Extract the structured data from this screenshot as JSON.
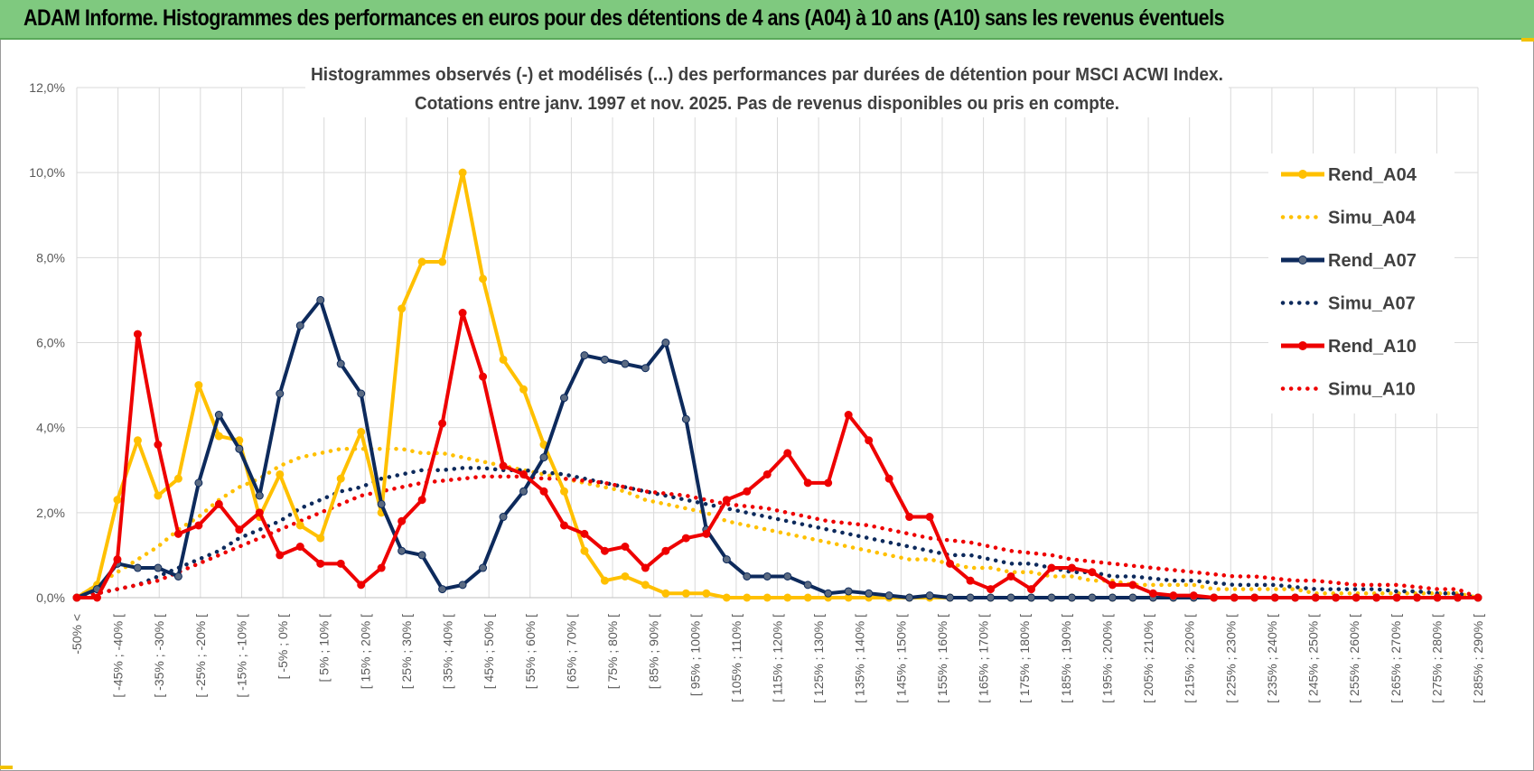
{
  "banner": {
    "title": "ADAM Informe. Histogrammes des performances en euros pour des détentions de 4 ans (A04) à 10 ans (A10) sans les revenus éventuels"
  },
  "colors": {
    "banner_bg": "#7fc97f",
    "A04": "#ffc000",
    "A07": "#0d2a5c",
    "A10": "#ee0000",
    "marker_A07": "#5a6a82",
    "grid": "#d9d9d9"
  },
  "chart_data": {
    "type": "line",
    "title_line1": "Histogrammes observés (-) et modélisés (...) des performances par durées de détention pour MSCI ACWI Index.",
    "title_line2": "Cotations entre janv. 1997 et nov. 2025. Pas de revenus disponibles ou pris en compte.",
    "ylim": [
      0,
      12
    ],
    "y_ticks": [
      "0,0%",
      "2,0%",
      "4,0%",
      "6,0%",
      "8,0%",
      "10,0%",
      "12,0%"
    ],
    "y_tick_values": [
      0,
      2,
      4,
      6,
      8,
      10,
      12
    ],
    "grid": true,
    "legend_position": "right",
    "x_tick_labels": [
      "-50% <",
      "[ -45% ; -40% [",
      "[ -35% ; -30% [",
      "[ -25% ; -20% [",
      "[ -15% ; -10% [",
      "[ -5% ; 0% [",
      "[ 5% ; 10% [",
      "[ 15% ; 20% [",
      "[ 25% ; 30% [",
      "[ 35% ; 40% [",
      "[ 45% ; 50% [",
      "[ 55% ; 60% [",
      "[ 65% ; 70% [",
      "[ 75% ; 80% [",
      "[ 85% ; 90% [",
      "[ 95% ; 100% [",
      "[ 105% ; 110% [",
      "[ 115% ; 120% [",
      "[ 125% ; 130% [",
      "[ 135% ; 140% [",
      "[ 145% ; 150% [",
      "[ 155% ; 160% [",
      "[ 165% ; 170% [",
      "[ 175% ; 180% [",
      "[ 185% ; 190% [",
      "[ 195% ; 200% [",
      "[ 205% ; 210% [",
      "[ 215% ; 220% [",
      "[ 225% ; 230% [",
      "[ 235% ; 240% [",
      "[ 245% ; 250% [",
      "[ 255% ; 260% [",
      "[ 265% ; 270% [",
      "[ 275% ; 280% [",
      "[ 285% ; 290% ["
    ],
    "series": [
      {
        "name": "Rend_A04",
        "style": "solid",
        "color": "#ffc000",
        "values": [
          0.0,
          0.3,
          2.3,
          3.7,
          2.4,
          2.8,
          5.0,
          3.8,
          3.7,
          1.9,
          2.9,
          1.7,
          1.4,
          2.8,
          3.9,
          2.0,
          6.8,
          7.9,
          7.9,
          10.0,
          7.5,
          5.6,
          4.9,
          3.6,
          2.5,
          1.1,
          0.4,
          0.5,
          0.3,
          0.1,
          0.1,
          0.1,
          0.0,
          0.0,
          0.0,
          0.0,
          0.0,
          0.0,
          0.0,
          0.0,
          0.0,
          0.0,
          0.0,
          0.0,
          0.0,
          0.0,
          0.0,
          0.0,
          0.0,
          0.0,
          0.0,
          0.0,
          0.0,
          0.0,
          0.0,
          0.0,
          0.0,
          0.0,
          0.0,
          0.0,
          0.0,
          0.0,
          0.0,
          0.0,
          0.0,
          0.0,
          0.0,
          0.0,
          0.0,
          0.0
        ]
      },
      {
        "name": "Simu_A04",
        "style": "dotted",
        "color": "#ffc000",
        "values": [
          0.0,
          0.3,
          0.6,
          0.9,
          1.2,
          1.6,
          1.9,
          2.3,
          2.6,
          2.8,
          3.1,
          3.3,
          3.4,
          3.5,
          3.5,
          3.5,
          3.5,
          3.4,
          3.4,
          3.3,
          3.2,
          3.1,
          3.0,
          2.9,
          2.8,
          2.7,
          2.6,
          2.5,
          2.3,
          2.2,
          2.1,
          2.0,
          1.8,
          1.7,
          1.6,
          1.5,
          1.4,
          1.3,
          1.2,
          1.1,
          1.0,
          0.9,
          0.9,
          0.8,
          0.7,
          0.7,
          0.6,
          0.6,
          0.5,
          0.5,
          0.4,
          0.4,
          0.3,
          0.3,
          0.3,
          0.3,
          0.2,
          0.2,
          0.2,
          0.2,
          0.2,
          0.1,
          0.1,
          0.1,
          0.1,
          0.1,
          0.1,
          0.1,
          0.1,
          0.0
        ]
      },
      {
        "name": "Rend_A07",
        "style": "solid",
        "color": "#0d2a5c",
        "values": [
          0.0,
          0.2,
          0.8,
          0.7,
          0.7,
          0.5,
          2.7,
          4.3,
          3.5,
          2.4,
          4.8,
          6.4,
          7.0,
          5.5,
          4.8,
          2.2,
          1.1,
          1.0,
          0.2,
          0.3,
          0.7,
          1.9,
          2.5,
          3.3,
          4.7,
          5.7,
          5.6,
          5.5,
          5.4,
          6.0,
          4.2,
          1.6,
          0.9,
          0.5,
          0.5,
          0.5,
          0.3,
          0.1,
          0.15,
          0.1,
          0.05,
          0.0,
          0.05,
          0.0,
          0.0,
          0.0,
          0.0,
          0.0,
          0.0,
          0.0,
          0.0,
          0.0,
          0.0,
          0.0,
          0.0,
          0.0,
          0.0,
          0.0,
          0.0,
          0.0,
          0.0,
          0.0,
          0.0,
          0.0,
          0.0,
          0.0,
          0.0,
          0.0,
          0.0,
          0.0
        ]
      },
      {
        "name": "Simu_A07",
        "style": "dotted",
        "color": "#0d2a5c",
        "values": [
          0.0,
          0.1,
          0.2,
          0.3,
          0.5,
          0.7,
          0.9,
          1.1,
          1.4,
          1.6,
          1.8,
          2.1,
          2.3,
          2.5,
          2.6,
          2.8,
          2.9,
          3.0,
          3.0,
          3.05,
          3.05,
          3.0,
          3.0,
          2.95,
          2.9,
          2.8,
          2.7,
          2.6,
          2.5,
          2.4,
          2.3,
          2.2,
          2.1,
          2.0,
          1.9,
          1.8,
          1.7,
          1.6,
          1.5,
          1.4,
          1.3,
          1.2,
          1.1,
          1.0,
          1.0,
          0.9,
          0.8,
          0.8,
          0.7,
          0.6,
          0.6,
          0.5,
          0.5,
          0.45,
          0.4,
          0.4,
          0.35,
          0.3,
          0.3,
          0.3,
          0.25,
          0.2,
          0.2,
          0.2,
          0.2,
          0.15,
          0.15,
          0.1,
          0.1,
          0.0
        ]
      },
      {
        "name": "Rend_A10",
        "style": "solid",
        "color": "#ee0000",
        "values": [
          0.0,
          0.0,
          0.9,
          6.2,
          3.6,
          1.5,
          1.7,
          2.2,
          1.6,
          2.0,
          1.0,
          1.2,
          0.8,
          0.8,
          0.3,
          0.7,
          1.8,
          2.3,
          4.1,
          6.7,
          5.2,
          3.1,
          2.9,
          2.5,
          1.7,
          1.5,
          1.1,
          1.2,
          0.7,
          1.1,
          1.4,
          1.5,
          2.3,
          2.5,
          2.9,
          3.4,
          2.7,
          2.7,
          4.3,
          3.7,
          2.8,
          1.9,
          1.9,
          0.8,
          0.4,
          0.2,
          0.5,
          0.2,
          0.7,
          0.7,
          0.6,
          0.3,
          0.3,
          0.1,
          0.05,
          0.05,
          0.0,
          0.0,
          0.0,
          0.0,
          0.0,
          0.0,
          0.0,
          0.0,
          0.0,
          0.0,
          0.0,
          0.0,
          0.0,
          0.0
        ]
      },
      {
        "name": "Simu_A10",
        "style": "dotted",
        "color": "#ee0000",
        "values": [
          0.0,
          0.1,
          0.2,
          0.3,
          0.4,
          0.6,
          0.8,
          1.0,
          1.2,
          1.4,
          1.6,
          1.8,
          2.0,
          2.2,
          2.4,
          2.5,
          2.6,
          2.7,
          2.75,
          2.8,
          2.85,
          2.85,
          2.85,
          2.8,
          2.8,
          2.75,
          2.7,
          2.6,
          2.5,
          2.45,
          2.4,
          2.3,
          2.2,
          2.15,
          2.1,
          2.0,
          1.9,
          1.8,
          1.75,
          1.7,
          1.6,
          1.5,
          1.4,
          1.35,
          1.3,
          1.2,
          1.1,
          1.05,
          1.0,
          0.9,
          0.85,
          0.8,
          0.75,
          0.7,
          0.65,
          0.6,
          0.55,
          0.5,
          0.5,
          0.45,
          0.4,
          0.4,
          0.35,
          0.3,
          0.3,
          0.3,
          0.25,
          0.2,
          0.2,
          0.0
        ]
      }
    ]
  }
}
